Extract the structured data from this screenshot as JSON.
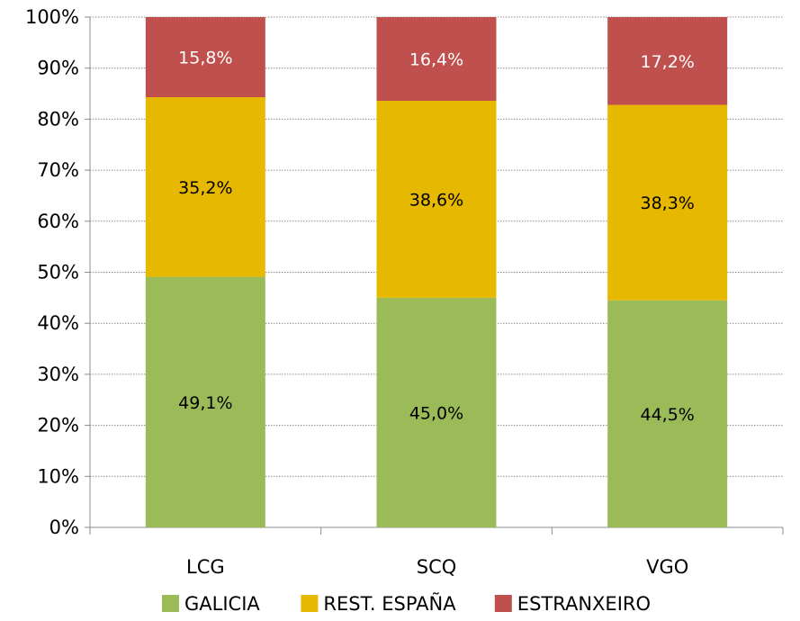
{
  "chart_data": {
    "type": "bar",
    "stacked": true,
    "percent": true,
    "categories": [
      "LCG",
      "SCQ",
      "VGO"
    ],
    "series": [
      {
        "name": "GALICIA",
        "values": [
          49.1,
          45.0,
          44.5
        ],
        "labels": [
          "49,1%",
          "45,0%",
          "44,5%"
        ],
        "color": "#9BBB59",
        "label_color": "#000000"
      },
      {
        "name": "REST. ESPAÑA",
        "values": [
          35.2,
          38.6,
          38.3
        ],
        "labels": [
          "35,2%",
          "38,6%",
          "38,3%"
        ],
        "color": "#E6B800",
        "label_color": "#000000"
      },
      {
        "name": "ESTRANXEIRO",
        "values": [
          15.8,
          16.4,
          17.2
        ],
        "labels": [
          "15,8%",
          "16,4%",
          "17,2%"
        ],
        "color": "#C0504D",
        "label_color": "#ffffff"
      }
    ],
    "yticks": [
      "0%",
      "10%",
      "20%",
      "30%",
      "40%",
      "50%",
      "60%",
      "70%",
      "80%",
      "90%",
      "100%"
    ],
    "ylim": [
      0,
      100
    ],
    "grid": true,
    "legend_position": "bottom"
  }
}
